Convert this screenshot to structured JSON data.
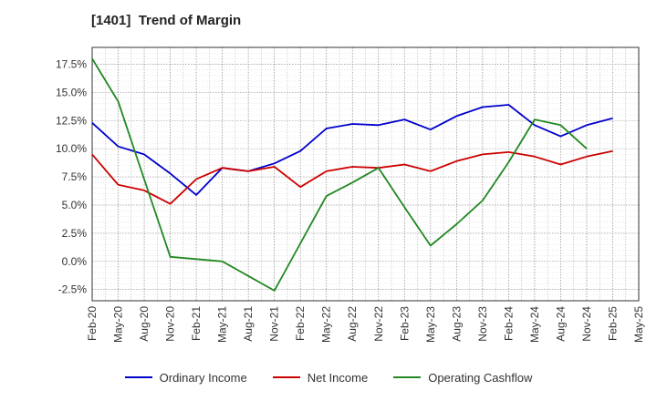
{
  "title": "[1401]  Trend of Margin",
  "chart_data": {
    "type": "line",
    "title": "[1401]  Trend of Margin",
    "xlabel": "",
    "ylabel": "",
    "categories": [
      "Feb-20",
      "May-20",
      "Aug-20",
      "Nov-20",
      "Feb-21",
      "May-21",
      "Aug-21",
      "Nov-21",
      "Feb-22",
      "May-22",
      "Aug-22",
      "Nov-22",
      "Feb-23",
      "May-23",
      "Aug-23",
      "Nov-23",
      "Feb-24",
      "May-24",
      "Aug-24",
      "Nov-24",
      "Feb-25",
      "May-25"
    ],
    "yticks": [
      "-2.5%",
      "0.0%",
      "2.5%",
      "5.0%",
      "7.5%",
      "10.0%",
      "12.5%",
      "15.0%",
      "17.5%"
    ],
    "ytick_values": [
      -2.5,
      0,
      2.5,
      5,
      7.5,
      10,
      12.5,
      15,
      17.5
    ],
    "ylim": [
      -3.5,
      19.0
    ],
    "grid": true,
    "legend_position": "bottom",
    "series": [
      {
        "name": "Ordinary Income",
        "color": "#0000cc",
        "values": [
          12.3,
          10.2,
          9.5,
          7.8,
          5.9,
          8.3,
          8.0,
          8.7,
          9.8,
          11.8,
          12.2,
          12.1,
          12.6,
          11.7,
          12.9,
          13.7,
          13.9,
          12.1,
          11.1,
          12.1,
          12.7,
          null
        ]
      },
      {
        "name": "Net Income",
        "color": "#cc0000",
        "values": [
          9.5,
          6.8,
          6.3,
          5.1,
          7.3,
          8.3,
          8.0,
          8.4,
          6.6,
          8.0,
          8.4,
          8.3,
          8.6,
          8.0,
          8.9,
          9.5,
          9.7,
          9.3,
          8.6,
          9.3,
          9.8,
          null
        ]
      },
      {
        "name": "Operating Cashflow",
        "color": "#228822",
        "values": [
          18.0,
          14.2,
          7.3,
          0.4,
          0.2,
          0.0,
          -1.3,
          -2.6,
          1.6,
          5.8,
          7.0,
          8.3,
          4.8,
          1.4,
          3.3,
          5.4,
          8.8,
          12.6,
          12.1,
          10.0,
          null,
          null
        ]
      }
    ]
  }
}
